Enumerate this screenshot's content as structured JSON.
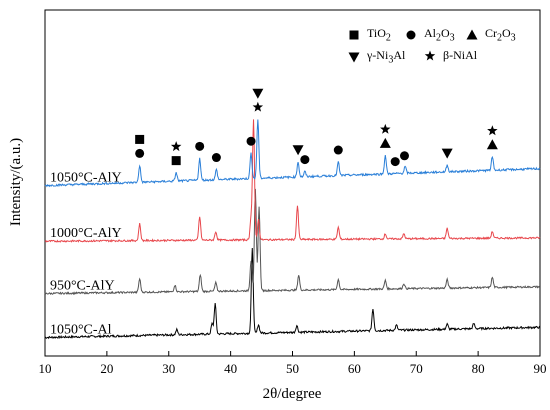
{
  "chart_data": {
    "type": "line",
    "title": "",
    "xlabel": "2θ/degree",
    "ylabel": "Intensity/(a.u.)",
    "xlim": [
      10,
      90
    ],
    "x_ticks": [
      10,
      20,
      30,
      40,
      50,
      60,
      70,
      80,
      90
    ],
    "y_ticks_shown": false,
    "grid": false,
    "legend_position": "top-right",
    "legend": [
      {
        "symbol": "square",
        "label": "TiO2",
        "html": "TiO<sub>2</sub>"
      },
      {
        "symbol": "circle",
        "label": "Al2O3",
        "html": "Al<sub>2</sub>O<sub>3</sub>"
      },
      {
        "symbol": "triangle-up",
        "label": "Cr2O3",
        "html": "Cr<sub>2</sub>O<sub>3</sub>"
      },
      {
        "symbol": "triangle-down",
        "label": "γ-Ni3Al",
        "html": "γ-Ni<sub>3</sub>Al"
      },
      {
        "symbol": "star",
        "label": "β-NiAl",
        "html": "β-NiAl"
      }
    ],
    "series": [
      {
        "name": "1050°C-Al",
        "color": "#000000",
        "baseline_start": 0.6,
        "baseline_end": 1.2,
        "noise": 0.12,
        "peaks": [
          [
            31.3,
            0.3
          ],
          [
            37.0,
            0.6
          ],
          [
            37.5,
            1.8
          ],
          [
            43.5,
            5.0
          ],
          [
            44.5,
            0.5
          ],
          [
            50.7,
            0.4
          ],
          [
            63.0,
            1.3
          ],
          [
            66.8,
            0.3
          ],
          [
            75.0,
            0.3
          ],
          [
            79.3,
            0.3
          ]
        ]
      },
      {
        "name": "950°C-AlY",
        "color": "#555555",
        "baseline_start": 3.2,
        "baseline_end": 3.6,
        "noise": 0.1,
        "peaks": [
          [
            25.3,
            0.8
          ],
          [
            31.0,
            0.4
          ],
          [
            35.1,
            1.0
          ],
          [
            37.6,
            0.5
          ],
          [
            43.3,
            1.8
          ],
          [
            44.0,
            6.0
          ],
          [
            44.6,
            5.0
          ],
          [
            51.0,
            0.9
          ],
          [
            57.4,
            0.6
          ],
          [
            65.0,
            0.5
          ],
          [
            68.0,
            0.3
          ],
          [
            75.0,
            0.5
          ],
          [
            82.3,
            0.6
          ]
        ]
      },
      {
        "name": "1000°C-AlY",
        "color": "#e8474c",
        "baseline_start": 6.3,
        "baseline_end": 6.5,
        "noise": 0.1,
        "peaks": [
          [
            25.3,
            1.0
          ],
          [
            35.0,
            1.4
          ],
          [
            37.6,
            0.5
          ],
          [
            43.3,
            1.3
          ],
          [
            43.7,
            7.1
          ],
          [
            44.5,
            1.2
          ],
          [
            50.8,
            2.0
          ],
          [
            57.4,
            0.7
          ],
          [
            65.0,
            0.3
          ],
          [
            68.0,
            0.3
          ],
          [
            75.0,
            0.6
          ],
          [
            82.3,
            0.4
          ]
        ]
      },
      {
        "name": "1050°C-AlY",
        "color": "#2a7fd8",
        "baseline_start": 9.6,
        "baseline_end": 10.6,
        "noise": 0.12,
        "peaks": [
          [
            25.3,
            1.0
          ],
          [
            31.2,
            0.5
          ],
          [
            35.0,
            1.3
          ],
          [
            37.7,
            0.6
          ],
          [
            43.3,
            1.5
          ],
          [
            44.4,
            3.5
          ],
          [
            50.9,
            0.9
          ],
          [
            52.0,
            0.3
          ],
          [
            57.4,
            0.8
          ],
          [
            65.0,
            1.1
          ],
          [
            68.2,
            0.4
          ],
          [
            75.0,
            0.4
          ],
          [
            82.3,
            0.8
          ]
        ]
      }
    ],
    "markers": [
      {
        "x": 25.3,
        "symbols": [
          "circle",
          "square"
        ]
      },
      {
        "x": 31.2,
        "symbols": [
          "square",
          "star"
        ]
      },
      {
        "x": 35.0,
        "symbols": [
          "circle"
        ]
      },
      {
        "x": 37.7,
        "symbols": [
          "circle"
        ]
      },
      {
        "x": 43.3,
        "symbols": [
          "circle"
        ]
      },
      {
        "x": 44.4,
        "symbols": [
          "star",
          "triangle-down"
        ]
      },
      {
        "x": 50.9,
        "symbols": [
          "triangle-down"
        ]
      },
      {
        "x": 52.0,
        "symbols": [
          "circle"
        ]
      },
      {
        "x": 57.4,
        "symbols": [
          "circle"
        ]
      },
      {
        "x": 65.0,
        "symbols": [
          "triangle-up",
          "star"
        ]
      },
      {
        "x": 66.6,
        "symbols": [
          "circle"
        ]
      },
      {
        "x": 68.1,
        "symbols": [
          "circle"
        ]
      },
      {
        "x": 75.0,
        "symbols": [
          "triangle-down"
        ]
      },
      {
        "x": 82.3,
        "symbols": [
          "triangle-up",
          "star"
        ]
      }
    ]
  }
}
